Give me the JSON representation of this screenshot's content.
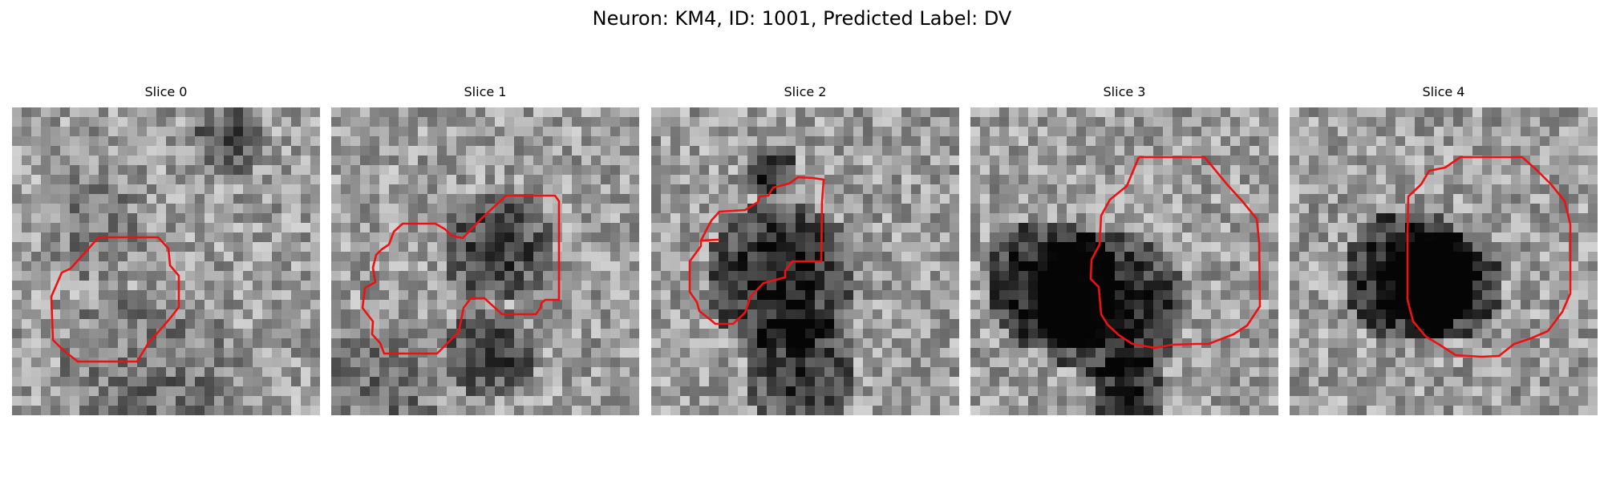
{
  "figure": {
    "title": "Neuron: KM4, ID: 1001, Predicted Label: DV"
  },
  "panels": [
    {
      "title": "Slice 0",
      "outline_color": "#ee1111"
    },
    {
      "title": "Slice 1",
      "outline_color": "#ee1111"
    },
    {
      "title": "Slice 2",
      "outline_color": "#ee1111"
    },
    {
      "title": "Slice 3",
      "outline_color": "#ee1111"
    },
    {
      "title": "Slice 4",
      "outline_color": "#ee1111"
    }
  ]
}
